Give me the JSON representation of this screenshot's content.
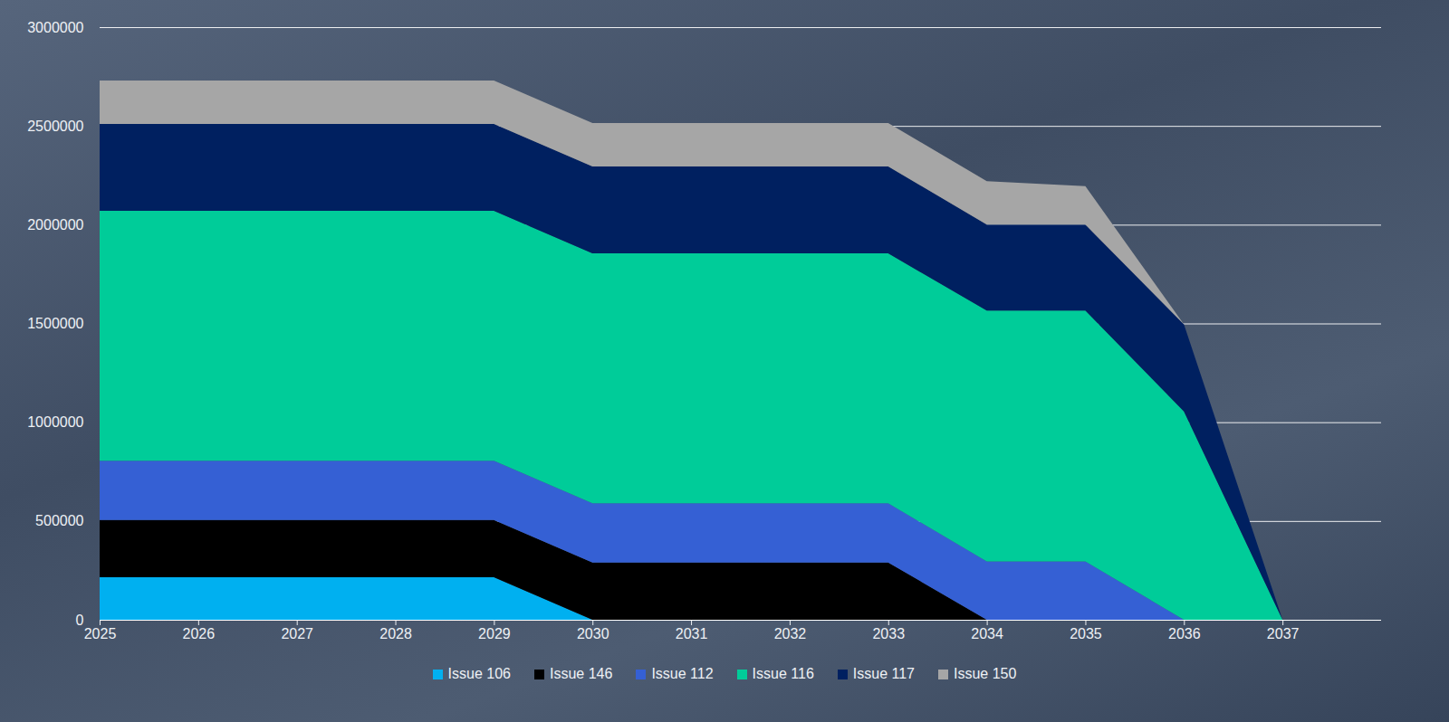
{
  "chart_data": {
    "type": "area",
    "stacked": true,
    "grid": true,
    "legend": "bottom",
    "x": [
      2025,
      2026,
      2027,
      2028,
      2029,
      2030,
      2031,
      2032,
      2033,
      2034,
      2035,
      2036,
      2037
    ],
    "xlim": [
      2025,
      2038
    ],
    "xticks": [
      2025,
      2026,
      2027,
      2028,
      2029,
      2030,
      2031,
      2032,
      2033,
      2034,
      2035,
      2036,
      2037
    ],
    "ylim": [
      0,
      3000000
    ],
    "yticks": [
      0,
      500000,
      1000000,
      1500000,
      2000000,
      2500000,
      3000000
    ],
    "series": [
      {
        "name": "Issue 106",
        "color": "#00b0f0",
        "values": [
          215000,
          215000,
          215000,
          215000,
          215000,
          0,
          0,
          0,
          0,
          0,
          0,
          0,
          0
        ]
      },
      {
        "name": "Issue 146",
        "color": "#000000",
        "values": [
          290000,
          290000,
          290000,
          290000,
          290000,
          290000,
          290000,
          290000,
          290000,
          0,
          0,
          0,
          0
        ]
      },
      {
        "name": "Issue 112",
        "color": "#3560d4",
        "values": [
          300000,
          300000,
          300000,
          300000,
          300000,
          300000,
          300000,
          300000,
          300000,
          295000,
          295000,
          0,
          0
        ]
      },
      {
        "name": "Issue 116",
        "color": "#00cc99",
        "values": [
          1265000,
          1265000,
          1265000,
          1265000,
          1265000,
          1265000,
          1265000,
          1265000,
          1265000,
          1270000,
          1270000,
          1055000,
          0
        ]
      },
      {
        "name": "Issue 117",
        "color": "#002060",
        "values": [
          440000,
          440000,
          440000,
          440000,
          440000,
          440000,
          440000,
          440000,
          440000,
          435000,
          435000,
          440000,
          0
        ]
      },
      {
        "name": "Issue 150",
        "color": "#a6a6a6",
        "values": [
          220000,
          220000,
          220000,
          220000,
          220000,
          220000,
          220000,
          220000,
          220000,
          220000,
          195000,
          0,
          0
        ]
      }
    ]
  }
}
